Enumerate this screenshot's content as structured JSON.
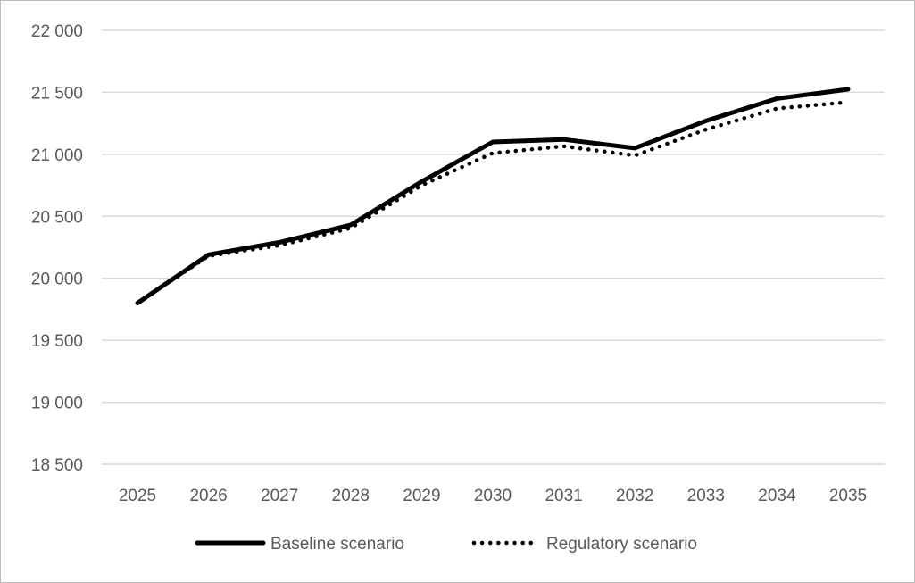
{
  "chart_data": {
    "type": "line",
    "x": [
      "2025",
      "2026",
      "2027",
      "2028",
      "2029",
      "2030",
      "2031",
      "2032",
      "2033",
      "2034",
      "2035"
    ],
    "series": [
      {
        "name": "Baseline scenario",
        "style": "solid",
        "color": "#000000",
        "values": [
          19800,
          20190,
          20290,
          20430,
          20780,
          21100,
          21120,
          21050,
          21270,
          21450,
          21525
        ]
      },
      {
        "name": "Regulatory scenario",
        "style": "dotted",
        "color": "#000000",
        "values": [
          19800,
          20180,
          20265,
          20405,
          20750,
          21010,
          21065,
          20990,
          21200,
          21370,
          21420
        ]
      }
    ],
    "y_ticks": [
      "18 500",
      "19 000",
      "19 500",
      "20 000",
      "20 500",
      "21 000",
      "21 500",
      "22 000"
    ],
    "y_tick_values": [
      18500,
      19000,
      19500,
      20000,
      20500,
      21000,
      21500,
      22000
    ],
    "ylim": [
      18500,
      22000
    ],
    "grid": true,
    "gridline_color": "#d9d9d9",
    "legend_position": "bottom",
    "title": "",
    "xlabel": "",
    "ylabel": ""
  }
}
